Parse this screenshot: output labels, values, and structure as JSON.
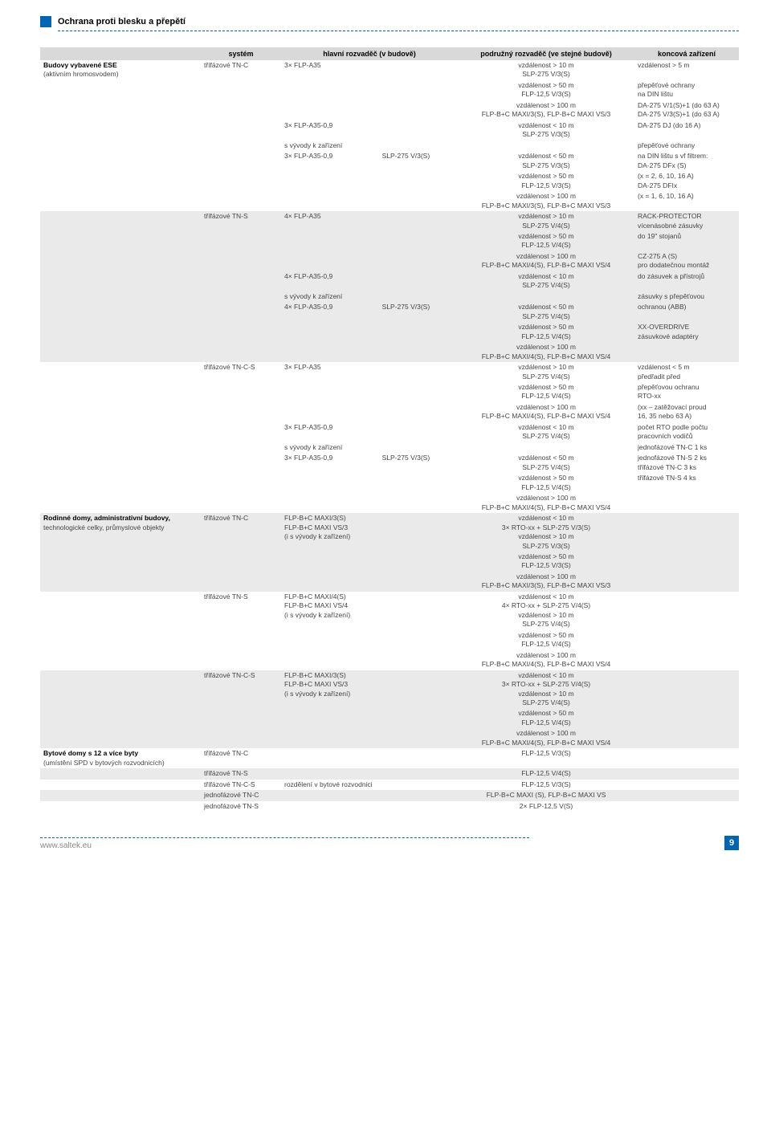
{
  "header": {
    "title": "Ochrana proti blesku a přepětí"
  },
  "table": {
    "columns": [
      "",
      "systém",
      "hlavní rozvaděč (v budově)",
      "podružný rozvaděč (ve stejné budově)",
      "koncová zařízení"
    ],
    "rows": [
      {
        "cat": "Budovy vybavené ESE",
        "catSub": "(aktivním hromosvodem)",
        "sys": "třífázové TN-C",
        "main": "3× FLP-A35",
        "sub": "vzdálenost > 10 m\nSLP-275 V/3(S)",
        "end": "vzdálenost > 5 m"
      },
      {
        "sub": "vzdálenost > 50 m\nFLP-12,5 V/3(S)",
        "end": "přepěťové ochrany\nna DIN lištu"
      },
      {
        "sub": "vzdálenost > 100 m\nFLP-B+C MAXI/3(S), FLP-B+C MAXI VS/3",
        "end": "DA-275 V/1(S)+1 (do 63 A)\nDA-275 V/3(S)+1 (do 63 A)"
      },
      {
        "main": "3× FLP-A35-0,9",
        "sub": "vzdálenost < 10 m\nSLP-275 V/3(S)",
        "end": "DA-275 DJ (do 16 A)"
      },
      {
        "main": "s vývody k zařízení",
        "end": "přepěťové ochrany"
      },
      {
        "main": "3× FLP-A35-0,9                          SLP-275 V/3(S)",
        "sub": "vzdálenost < 50 m\nSLP-275 V/3(S)",
        "end": "na DIN lištu s vf filtrem:\nDA-275 DFx (S)"
      },
      {
        "sub": "vzdálenost > 50 m\nFLP-12,5 V/3(S)",
        "end": "(x = 2, 6, 10, 16 A)\nDA-275 DFIx"
      },
      {
        "sub": "vzdálenost > 100 m\nFLP-B+C MAXI/3(S), FLP-B+C MAXI VS/3",
        "end": "(x = 1, 6, 10, 16 A)"
      },
      {
        "sys": "třífázové TN-S",
        "main": "4× FLP-A35",
        "sub": "vzdálenost > 10 m\nSLP-275 V/4(S)",
        "end": "RACK-PROTECTOR\nvícenásobné zásuvky",
        "alt": true
      },
      {
        "sub": "vzdálenost > 50 m\nFLP-12,5 V/4(S)",
        "end": "do 19\" stojanů",
        "alt": true
      },
      {
        "sub": "vzdálenost > 100 m\nFLP-B+C MAXI/4(S), FLP-B+C MAXI VS/4",
        "end": "CZ-275 A (S)\npro dodatečnou montáž",
        "alt": true
      },
      {
        "main": "4× FLP-A35-0,9",
        "sub": "vzdálenost < 10 m\nSLP-275 V/4(S)",
        "end": "do zásuvek a přístrojů",
        "alt": true
      },
      {
        "main": "s vývody k zařízení",
        "end": "zásuvky s přepěťovou",
        "alt": true
      },
      {
        "main": "4× FLP-A35-0,9                          SLP-275 V/3(S)",
        "sub": "vzdálenost < 50 m\nSLP-275 V/4(S)",
        "end": "ochranou (ABB)",
        "alt": true
      },
      {
        "sub": "vzdálenost > 50 m\nFLP-12,5 V/4(S)",
        "end": "XX-OVERDRIVE\nzásuvkové adaptéry",
        "alt": true
      },
      {
        "sub": "vzdálenost > 100 m\nFLP-B+C MAXI/4(S), FLP-B+C MAXI VS/4",
        "alt": true
      },
      {
        "sys": "třífázové TN-C-S",
        "main": "3× FLP-A35",
        "sub": "vzdálenost > 10 m\nSLP-275 V/4(S)",
        "end": "vzdálenost < 5 m\npředřadit před"
      },
      {
        "sub": "vzdálenost > 50 m\nFLP-12,5 V/4(S)",
        "end": "přepěťovou ochranu\nRTO-xx"
      },
      {
        "sub": "vzdálenost > 100 m\nFLP-B+C MAXI/4(S), FLP-B+C MAXI VS/4",
        "end": "(xx – zatěžovací proud\n16, 35 nebo 63 A)"
      },
      {
        "main": "3× FLP-A35-0,9",
        "sub": "vzdálenost < 10 m\nSLP-275 V/4(S)",
        "end": "počet RTO podle počtu\npracovních vodičů"
      },
      {
        "main": "s vývody k zařízení",
        "end": "jednofázové TN-C   1 ks"
      },
      {
        "main": "3× FLP-A35-0,9                          SLP-275 V/3(S)",
        "sub": "vzdálenost < 50 m\nSLP-275 V/4(S)",
        "end": "jednofázové TN-S   2 ks\ntřífázové TN-C   3 ks"
      },
      {
        "sub": "vzdálenost > 50 m\nFLP-12,5 V/4(S)",
        "end": "třífázové TN-S   4 ks"
      },
      {
        "sub": "vzdálenost > 100 m\nFLP-B+C MAXI/4(S), FLP-B+C MAXI VS/4"
      },
      {
        "cat": "Rodinné domy, administrativní budovy,",
        "catSub": "technologické celky, průmyslové objekty",
        "sys": "třífázové TN-C",
        "main": "FLP-B+C MAXI/3(S)\nFLP-B+C MAXI VS/3\n(i s vývody k zařízení)",
        "sub": "vzdálenost < 10 m\n3× RTO-xx + SLP-275 V/3(S)\nvzdálenost > 10 m\nSLP-275 V/3(S)",
        "alt": true
      },
      {
        "sub": "vzdálenost > 50 m\nFLP-12,5 V/3(S)",
        "alt": true
      },
      {
        "sub": "vzdálenost > 100 m\nFLP-B+C MAXI/3(S), FLP-B+C MAXI VS/3",
        "alt": true
      },
      {
        "sys": "třífázové TN-S",
        "main": "FLP-B+C MAXI/4(S)\nFLP-B+C MAXI VS/4\n(i s vývody k zařízení)",
        "sub": "vzdálenost < 10 m\n4× RTO-xx + SLP-275 V/4(S)\nvzdálenost > 10 m\nSLP-275 V/4(S)"
      },
      {
        "sub": "vzdálenost > 50 m\nFLP-12,5 V/4(S)"
      },
      {
        "sub": "vzdálenost > 100 m\nFLP-B+C MAXI/4(S), FLP-B+C MAXI VS/4"
      },
      {
        "sys": "třífázové TN-C-S",
        "main": "FLP-B+C MAXI/3(S)\nFLP-B+C MAXI VS/3\n(i s vývody k zařízení)",
        "sub": "vzdálenost < 10 m\n3× RTO-xx + SLP-275 V/4(S)\nvzdálenost > 10 m\nSLP-275 V/4(S)",
        "alt": true
      },
      {
        "sub": "vzdálenost > 50 m\nFLP-12,5 V/4(S)",
        "alt": true
      },
      {
        "sub": "vzdálenost > 100 m\nFLP-B+C MAXI/4(S), FLP-B+C MAXI VS/4",
        "alt": true
      },
      {
        "cat": "Bytové domy s 12 a více byty",
        "catSub": "(umístění SPD v bytových rozvodnicích)",
        "sys": "třífázové TN-C",
        "sub": "FLP-12,5 V/3(S)"
      },
      {
        "sys": "třífázové TN-S",
        "sub": "FLP-12,5 V/4(S)",
        "alt": true
      },
      {
        "sys": "třífázové TN-C-S",
        "main": "rozdělení v bytové rozvodnici",
        "sub": "FLP-12,5 V/3(S)"
      },
      {
        "sys": "jednofázové TN-C",
        "sub": "FLP-B+C MAXI (S), FLP-B+C MAXI VS",
        "alt": true
      },
      {
        "sys": "jednofázové TN-S",
        "sub": "2× FLP-12,5 V(S)"
      }
    ]
  },
  "footer": {
    "url": "www.saltek.eu",
    "page": "9"
  }
}
